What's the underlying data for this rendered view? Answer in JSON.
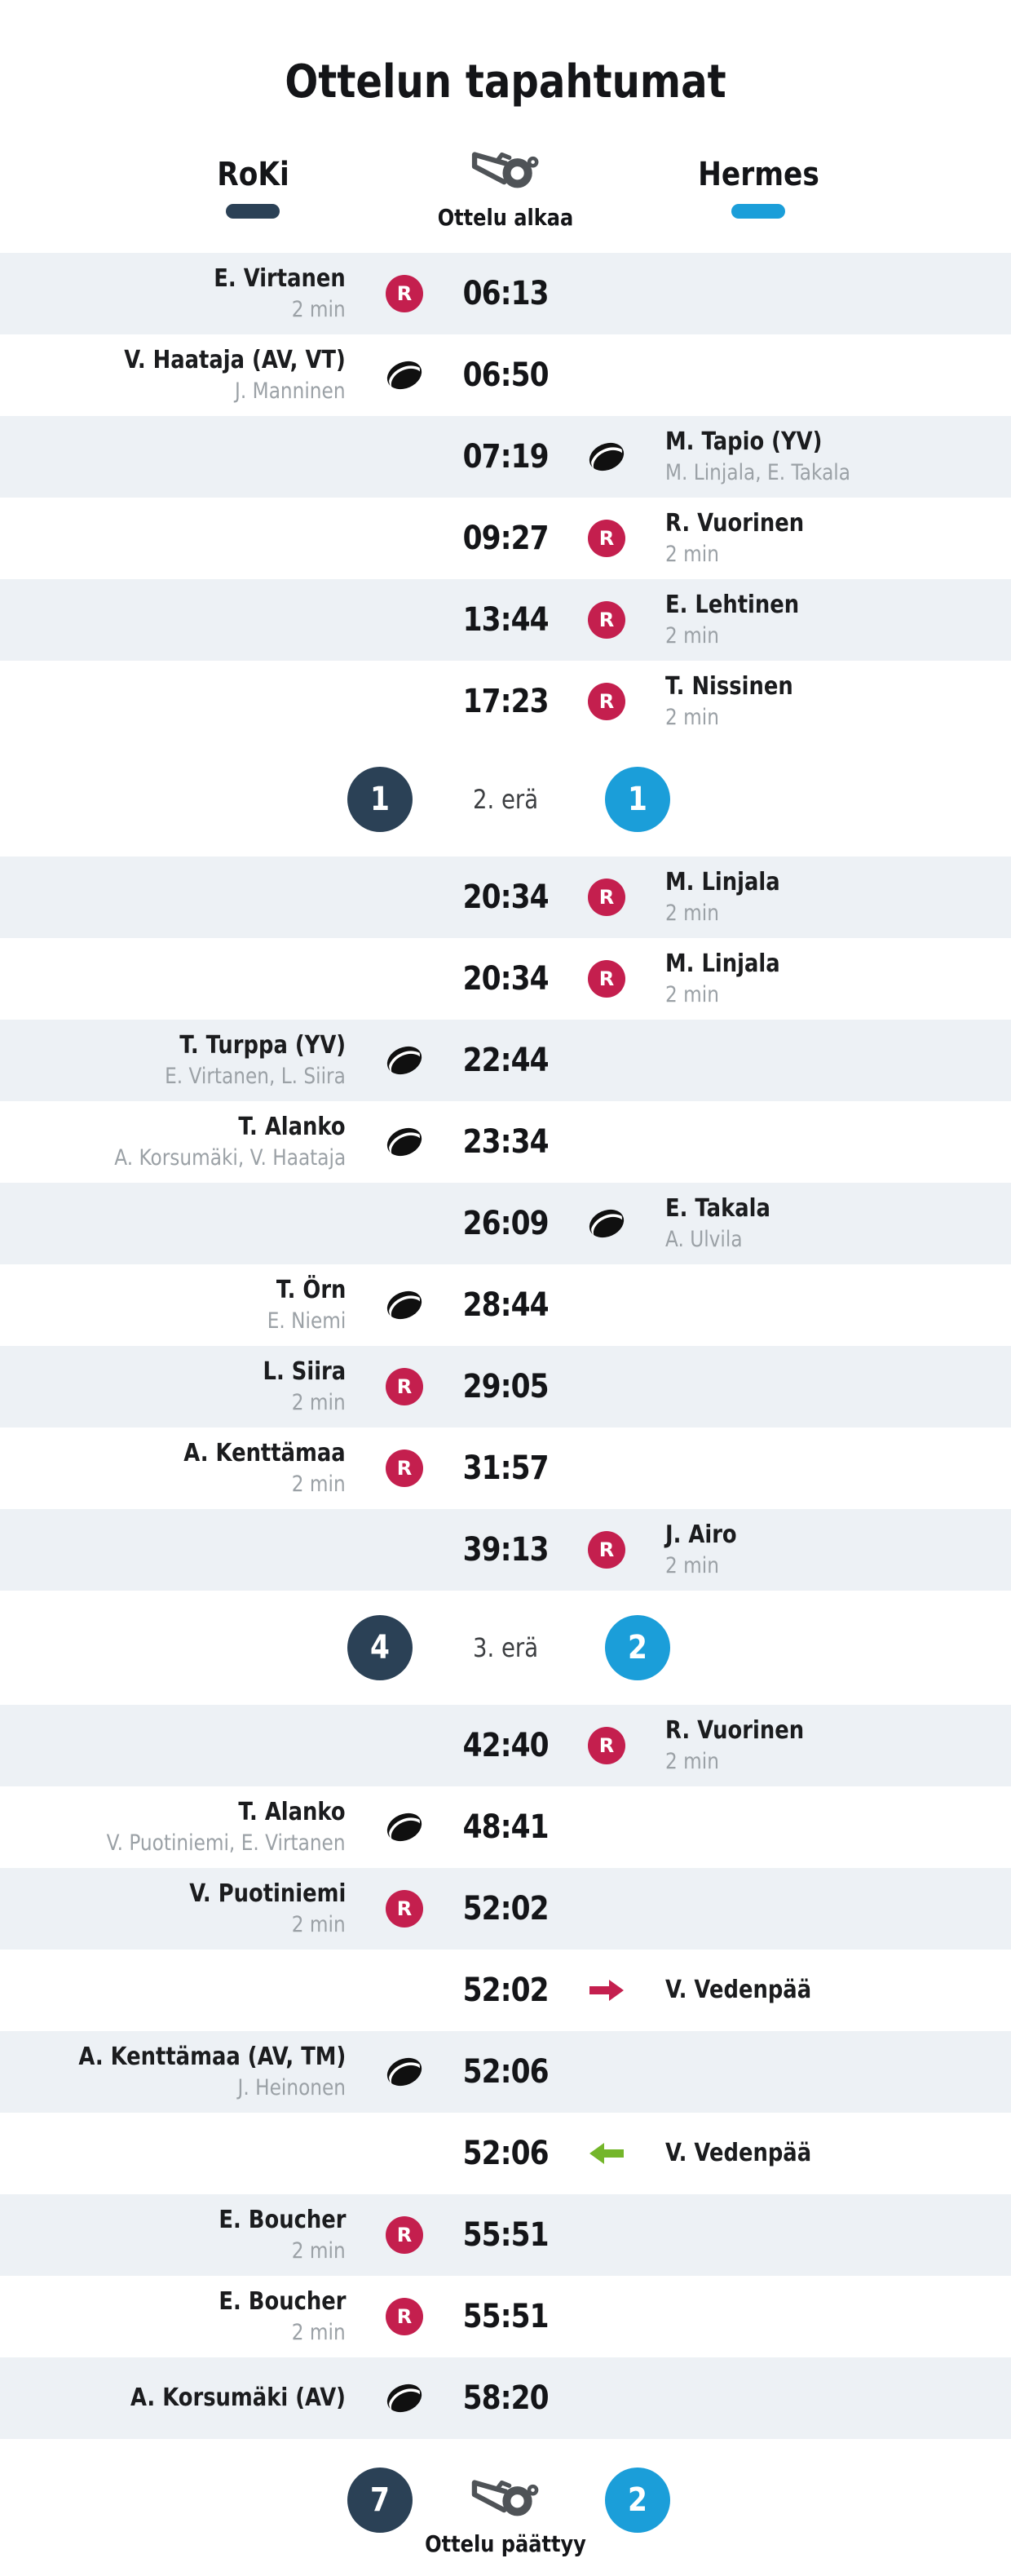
{
  "title": "Ottelun tapahtumat",
  "teams": {
    "home": {
      "name": "RoKi",
      "color": "#2b4156"
    },
    "away": {
      "name": "Hermes",
      "color": "#1b9ed9"
    }
  },
  "match_start_label": "Ottelu alkaa",
  "icons": {
    "penalty_letter": "R"
  },
  "colors": {
    "penalty_badge": "#c41f4e",
    "goalie_out_arrow": "#c41f4e",
    "goalie_in_arrow": "#74b62a",
    "row_alt_background": "#edf1f5",
    "muted_text": "#9ba1a6"
  },
  "events": [
    {
      "kind": "event",
      "side": "home",
      "bg": "alt",
      "time": "06:13",
      "icon": "penalty-icon",
      "name": "E. Virtanen",
      "sub": "2 min"
    },
    {
      "kind": "event",
      "side": "home",
      "bg": "plain",
      "time": "06:50",
      "icon": "puck-icon",
      "name": "V. Haataja (AV, VT)",
      "sub": "J. Manninen"
    },
    {
      "kind": "event",
      "side": "away",
      "bg": "alt",
      "time": "07:19",
      "icon": "puck-icon",
      "name": "M. Tapio (YV)",
      "sub": "M. Linjala, E. Takala"
    },
    {
      "kind": "event",
      "side": "away",
      "bg": "plain",
      "time": "09:27",
      "icon": "penalty-icon",
      "name": "R. Vuorinen",
      "sub": "2 min"
    },
    {
      "kind": "event",
      "side": "away",
      "bg": "alt",
      "time": "13:44",
      "icon": "penalty-icon",
      "name": "E. Lehtinen",
      "sub": "2 min"
    },
    {
      "kind": "event",
      "side": "away",
      "bg": "plain",
      "time": "17:23",
      "icon": "penalty-icon",
      "name": "T. Nissinen",
      "sub": "2 min"
    },
    {
      "kind": "period",
      "label": "2. erä",
      "home_score": "1",
      "away_score": "1"
    },
    {
      "kind": "event",
      "side": "away",
      "bg": "alt",
      "time": "20:34",
      "icon": "penalty-icon",
      "name": "M. Linjala",
      "sub": "2 min"
    },
    {
      "kind": "event",
      "side": "away",
      "bg": "plain",
      "time": "20:34",
      "icon": "penalty-icon",
      "name": "M. Linjala",
      "sub": "2 min"
    },
    {
      "kind": "event",
      "side": "home",
      "bg": "alt",
      "time": "22:44",
      "icon": "puck-icon",
      "name": "T. Turppa (YV)",
      "sub": "E. Virtanen, L. Siira"
    },
    {
      "kind": "event",
      "side": "home",
      "bg": "plain",
      "time": "23:34",
      "icon": "puck-icon",
      "name": "T. Alanko",
      "sub": "A. Korsumäki, V. Haataja"
    },
    {
      "kind": "event",
      "side": "away",
      "bg": "alt",
      "time": "26:09",
      "icon": "puck-icon",
      "name": "E. Takala",
      "sub": "A. Ulvila"
    },
    {
      "kind": "event",
      "side": "home",
      "bg": "plain",
      "time": "28:44",
      "icon": "puck-icon",
      "name": "T. Örn",
      "sub": "E. Niemi"
    },
    {
      "kind": "event",
      "side": "home",
      "bg": "alt",
      "time": "29:05",
      "icon": "penalty-icon",
      "name": "L. Siira",
      "sub": "2 min"
    },
    {
      "kind": "event",
      "side": "home",
      "bg": "plain",
      "time": "31:57",
      "icon": "penalty-icon",
      "name": "A. Kenttämaa",
      "sub": "2 min"
    },
    {
      "kind": "event",
      "side": "away",
      "bg": "alt",
      "time": "39:13",
      "icon": "penalty-icon",
      "name": "J. Airo",
      "sub": "2 min"
    },
    {
      "kind": "period",
      "label": "3. erä",
      "home_score": "4",
      "away_score": "2"
    },
    {
      "kind": "event",
      "side": "away",
      "bg": "alt",
      "time": "42:40",
      "icon": "penalty-icon",
      "name": "R. Vuorinen",
      "sub": "2 min"
    },
    {
      "kind": "event",
      "side": "home",
      "bg": "plain",
      "time": "48:41",
      "icon": "puck-icon",
      "name": "T. Alanko",
      "sub": "V. Puotiniemi, E. Virtanen"
    },
    {
      "kind": "event",
      "side": "home",
      "bg": "alt",
      "time": "52:02",
      "icon": "penalty-icon",
      "name": "V. Puotiniemi",
      "sub": "2 min"
    },
    {
      "kind": "event",
      "side": "away",
      "bg": "plain",
      "time": "52:02",
      "icon": "goalie-out-icon",
      "name": "V. Vedenpää"
    },
    {
      "kind": "event",
      "side": "home",
      "bg": "alt",
      "time": "52:06",
      "icon": "puck-icon",
      "name": "A. Kenttämaa (AV, TM)",
      "sub": "J. Heinonen"
    },
    {
      "kind": "event",
      "side": "away",
      "bg": "plain",
      "time": "52:06",
      "icon": "goalie-in-icon",
      "name": "V. Vedenpää"
    },
    {
      "kind": "event",
      "side": "home",
      "bg": "alt",
      "time": "55:51",
      "icon": "penalty-icon",
      "name": "E. Boucher",
      "sub": "2 min"
    },
    {
      "kind": "event",
      "side": "home",
      "bg": "plain",
      "time": "55:51",
      "icon": "penalty-icon",
      "name": "E. Boucher",
      "sub": "2 min"
    },
    {
      "kind": "event",
      "side": "home",
      "bg": "alt",
      "time": "58:20",
      "icon": "puck-icon",
      "name": "A. Korsumäki (AV)"
    }
  ],
  "footer": {
    "home_total": "7",
    "away_total": "2",
    "label": "Ottelu päättyy"
  }
}
